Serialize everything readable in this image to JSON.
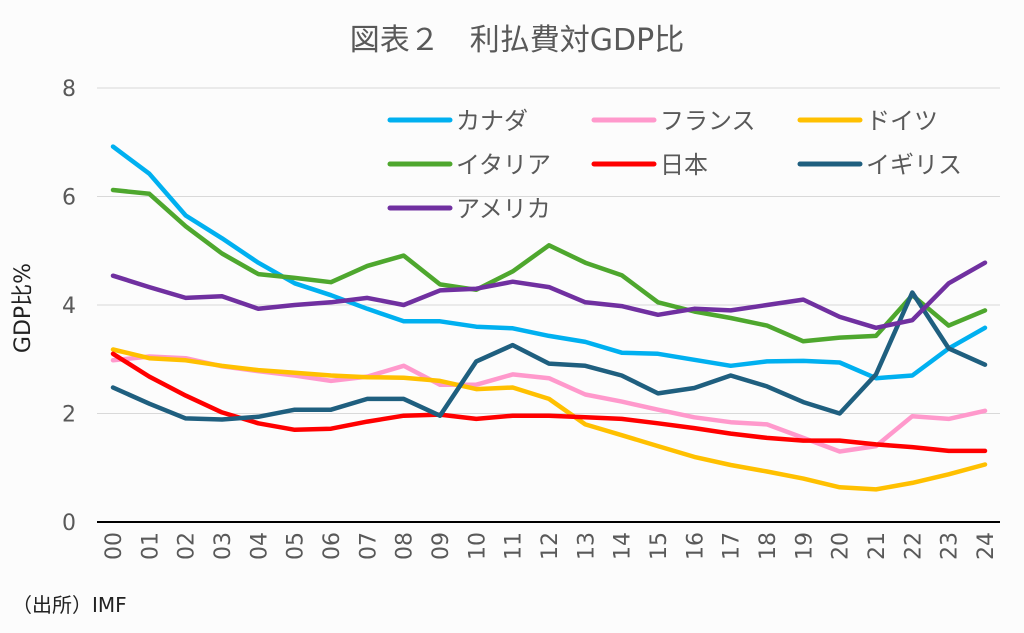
{
  "chart_data": {
    "type": "line",
    "title": "図表２　利払費対GDP比",
    "xlabel": "",
    "ylabel": "GDP比%",
    "ylim": [
      0,
      8
    ],
    "yticks": [
      0,
      2,
      4,
      6,
      8
    ],
    "grid": "horizontal",
    "legend_position": "top-right",
    "x": [
      "00",
      "01",
      "02",
      "03",
      "04",
      "05",
      "06",
      "07",
      "08",
      "09",
      "10",
      "11",
      "12",
      "13",
      "14",
      "15",
      "16",
      "17",
      "18",
      "19",
      "20",
      "21",
      "22",
      "23",
      "24"
    ],
    "series": [
      {
        "name": "カナダ",
        "color": "#00b0f0",
        "values": [
          6.92,
          6.42,
          5.65,
          5.23,
          4.78,
          4.4,
          4.18,
          3.93,
          3.7,
          3.7,
          3.6,
          3.57,
          3.43,
          3.32,
          3.12,
          3.1,
          2.99,
          2.88,
          2.96,
          2.97,
          2.94,
          2.65,
          2.7,
          3.2,
          3.58
        ]
      },
      {
        "name": "フランス",
        "color": "#ff99cc",
        "values": [
          2.98,
          3.05,
          3.02,
          2.87,
          2.78,
          2.7,
          2.6,
          2.68,
          2.88,
          2.53,
          2.53,
          2.72,
          2.65,
          2.35,
          2.22,
          2.07,
          1.93,
          1.84,
          1.8,
          1.55,
          1.3,
          1.4,
          1.95,
          1.9,
          2.05
        ]
      },
      {
        "name": "ドイツ",
        "color": "#ffc000",
        "values": [
          3.18,
          3.02,
          2.98,
          2.88,
          2.8,
          2.75,
          2.7,
          2.67,
          2.66,
          2.6,
          2.45,
          2.48,
          2.27,
          1.8,
          1.6,
          1.4,
          1.2,
          1.05,
          0.93,
          0.8,
          0.64,
          0.6,
          0.72,
          0.88,
          1.06
        ]
      },
      {
        "name": "イタリア",
        "color": "#4ea72e",
        "values": [
          6.12,
          6.05,
          5.45,
          4.95,
          4.57,
          4.5,
          4.42,
          4.72,
          4.91,
          4.38,
          4.28,
          4.62,
          5.1,
          4.78,
          4.55,
          4.05,
          3.88,
          3.76,
          3.62,
          3.33,
          3.4,
          3.43,
          4.18,
          3.62,
          3.9
        ]
      },
      {
        "name": "日本",
        "color": "#ff0000",
        "values": [
          3.1,
          2.68,
          2.33,
          2.02,
          1.82,
          1.7,
          1.72,
          1.85,
          1.96,
          1.98,
          1.9,
          1.96,
          1.96,
          1.93,
          1.9,
          1.82,
          1.73,
          1.63,
          1.55,
          1.5,
          1.5,
          1.43,
          1.38,
          1.31,
          1.31
        ]
      },
      {
        "name": "イギリス",
        "color": "#1f5f7f",
        "values": [
          2.48,
          2.18,
          1.91,
          1.89,
          1.94,
          2.07,
          2.07,
          2.27,
          2.27,
          1.96,
          2.96,
          3.26,
          2.92,
          2.88,
          2.7,
          2.37,
          2.47,
          2.7,
          2.5,
          2.21,
          2.0,
          2.72,
          4.23,
          3.2,
          2.9
        ]
      },
      {
        "name": "アメリカ",
        "color": "#7030a0",
        "values": [
          4.54,
          4.33,
          4.13,
          4.16,
          3.93,
          4.0,
          4.05,
          4.13,
          4.0,
          4.27,
          4.3,
          4.43,
          4.33,
          4.05,
          3.98,
          3.82,
          3.93,
          3.9,
          4.0,
          4.1,
          3.78,
          3.58,
          3.72,
          4.4,
          4.78
        ]
      }
    ]
  },
  "source_note": "（出所）IMF"
}
